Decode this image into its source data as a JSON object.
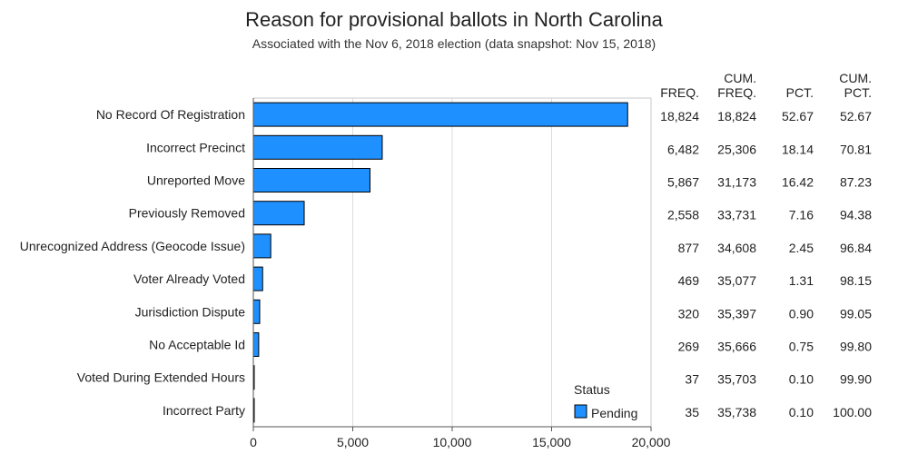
{
  "chart_data": {
    "type": "bar",
    "orientation": "horizontal",
    "title": "Reason for provisional ballots in North Carolina",
    "subtitle": "Associated with the Nov 6, 2018 election (data snapshot: Nov 15, 2018)",
    "categories": [
      "No Record Of Registration",
      "Incorrect Precinct",
      "Unreported Move",
      "Previously Removed",
      "Unrecognized Address (Geocode Issue)",
      "Voter Already Voted",
      "Jurisdiction Dispute",
      "No Acceptable Id",
      "Voted During Extended Hours",
      "Incorrect Party"
    ],
    "series": [
      {
        "name": "Pending",
        "values": [
          18824,
          6482,
          5867,
          2558,
          877,
          469,
          320,
          269,
          37,
          35
        ],
        "color": "#1e90ff"
      }
    ],
    "xlim": [
      0,
      20000
    ],
    "xticks": [
      "0",
      "5,000",
      "10,000",
      "15,000",
      "20,000"
    ],
    "xtick_values": [
      0,
      5000,
      10000,
      15000,
      20000
    ],
    "grid": true,
    "legend": {
      "title": "Status",
      "placement": "bottom-right"
    },
    "table": {
      "columns": [
        {
          "line1": "",
          "line2": "FREQ."
        },
        {
          "line1": "CUM.",
          "line2": "FREQ."
        },
        {
          "line1": "",
          "line2": "PCT."
        },
        {
          "line1": "CUM.",
          "line2": "PCT."
        }
      ],
      "rows": [
        [
          "18,824",
          "18,824",
          "52.67",
          "52.67"
        ],
        [
          "6,482",
          "25,306",
          "18.14",
          "70.81"
        ],
        [
          "5,867",
          "31,173",
          "16.42",
          "87.23"
        ],
        [
          "2,558",
          "33,731",
          "7.16",
          "94.38"
        ],
        [
          "877",
          "34,608",
          "2.45",
          "96.84"
        ],
        [
          "469",
          "35,077",
          "1.31",
          "98.15"
        ],
        [
          "320",
          "35,397",
          "0.90",
          "99.05"
        ],
        [
          "269",
          "35,666",
          "0.75",
          "99.80"
        ],
        [
          "37",
          "35,703",
          "0.10",
          "99.90"
        ],
        [
          "35",
          "35,738",
          "0.10",
          "100.00"
        ]
      ]
    }
  }
}
